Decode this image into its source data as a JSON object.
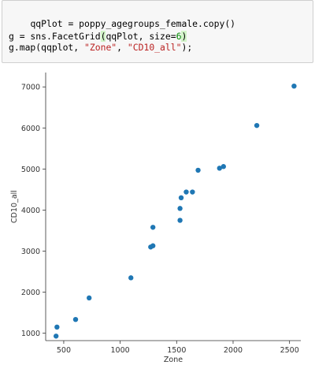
{
  "code": {
    "line1": "qqPlot = poppy_agegroups_female.copy()",
    "line2_pre": "g = sns.FacetGrid",
    "line2_paren_open": "(",
    "line2_mid": "qqPlot, size=",
    "line2_num": "6",
    "line2_paren_close": ")",
    "line3_pre": "g.map(qqplot, ",
    "line3_str1": "\"Zone\"",
    "line3_sep": ", ",
    "line3_str2": "\"CD10_all\"",
    "line3_post": ");"
  },
  "chart_data": {
    "type": "scatter",
    "xlabel": "Zone",
    "ylabel": "CD10_all",
    "xlim": [
      340,
      2600
    ],
    "ylim": [
      820,
      7350
    ],
    "xticks": [
      500,
      1000,
      1500,
      2000,
      2500
    ],
    "yticks": [
      1000,
      2000,
      3000,
      4000,
      5000,
      6000,
      7000
    ],
    "point_color": "#1f77b4",
    "points": [
      {
        "x": 432,
        "y": 930
      },
      {
        "x": 440,
        "y": 1150
      },
      {
        "x": 605,
        "y": 1335
      },
      {
        "x": 725,
        "y": 1860
      },
      {
        "x": 1095,
        "y": 2350
      },
      {
        "x": 1270,
        "y": 3100
      },
      {
        "x": 1290,
        "y": 3130
      },
      {
        "x": 1290,
        "y": 3580
      },
      {
        "x": 1530,
        "y": 3750
      },
      {
        "x": 1530,
        "y": 4040
      },
      {
        "x": 1540,
        "y": 4300
      },
      {
        "x": 1585,
        "y": 4440
      },
      {
        "x": 1640,
        "y": 4440
      },
      {
        "x": 1690,
        "y": 4970
      },
      {
        "x": 1880,
        "y": 5020
      },
      {
        "x": 1915,
        "y": 5060
      },
      {
        "x": 2210,
        "y": 6060
      },
      {
        "x": 2540,
        "y": 7020
      }
    ]
  }
}
